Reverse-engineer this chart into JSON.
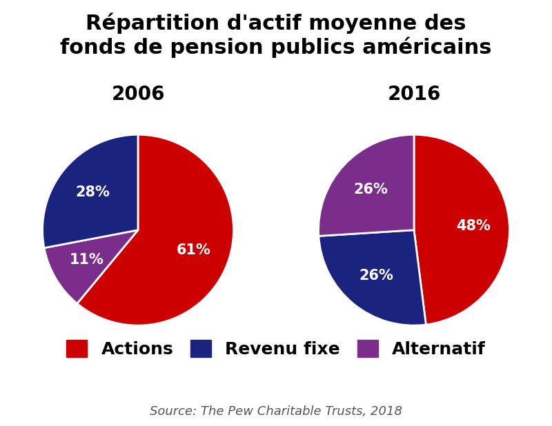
{
  "title": "Répartition d'actif moyenne des\nfonds de pension publics américains",
  "title_fontsize": 22,
  "title_fontweight": "bold",
  "subtitle_2006": "2006",
  "subtitle_2016": "2016",
  "subtitle_fontsize": 20,
  "subtitle_fontweight": "bold",
  "values_2006": [
    61,
    28,
    11
  ],
  "values_2016": [
    48,
    26,
    26
  ],
  "labels_2006": [
    "61%",
    "28%",
    "11%"
  ],
  "labels_2016": [
    "48%",
    "26%",
    "26%"
  ],
  "colors": [
    "#CC0000",
    "#1a237e",
    "#7B2D8B"
  ],
  "legend_labels": [
    "Actions",
    "Revenu fixe",
    "Alternatif"
  ],
  "legend_fontsize": 18,
  "legend_fontweight": "bold",
  "pct_fontsize": 15,
  "pct_fontweight": "bold",
  "pct_color": "white",
  "source_text": "Source: The Pew Charitable Trusts, 2018",
  "source_fontsize": 13,
  "background_color": "#ffffff"
}
